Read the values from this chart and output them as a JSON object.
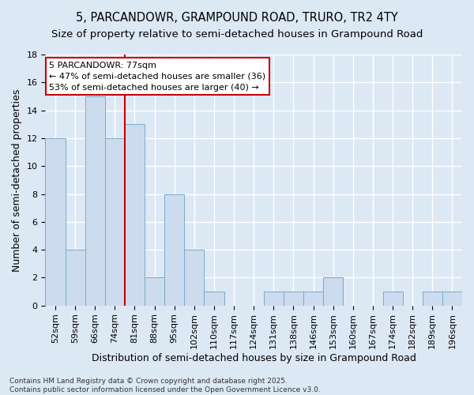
{
  "title": "5, PARCANDOWR, GRAMPOUND ROAD, TRURO, TR2 4TY",
  "subtitle": "Size of property relative to semi-detached houses in Grampound Road",
  "xlabel": "Distribution of semi-detached houses by size in Grampound Road",
  "ylabel": "Number of semi-detached properties",
  "categories": [
    "52sqm",
    "59sqm",
    "66sqm",
    "74sqm",
    "81sqm",
    "88sqm",
    "95sqm",
    "102sqm",
    "110sqm",
    "117sqm",
    "124sqm",
    "131sqm",
    "138sqm",
    "146sqm",
    "153sqm",
    "160sqm",
    "167sqm",
    "174sqm",
    "182sqm",
    "189sqm",
    "196sqm"
  ],
  "values": [
    12,
    4,
    15,
    12,
    13,
    2,
    8,
    4,
    1,
    0,
    0,
    1,
    1,
    1,
    2,
    0,
    0,
    1,
    0,
    1,
    1
  ],
  "bar_color": "#ccdcee",
  "bar_edge_color": "#7aaac8",
  "background_color": "#dde8f5",
  "grid_color": "#ffffff",
  "vline_x": 3.5,
  "vline_color": "#cc0000",
  "annotation_line1": "5 PARCANDOWR: 77sqm",
  "annotation_line2": "← 47% of semi-detached houses are smaller (36)",
  "annotation_line3": "53% of semi-detached houses are larger (40) →",
  "annotation_box_color": "white",
  "annotation_box_edge": "#cc0000",
  "ylim": [
    0,
    18
  ],
  "yticks": [
    0,
    2,
    4,
    6,
    8,
    10,
    12,
    14,
    16,
    18
  ],
  "title_fontsize": 10.5,
  "subtitle_fontsize": 9.5,
  "xlabel_fontsize": 9,
  "ylabel_fontsize": 9,
  "tick_fontsize": 8,
  "annotation_fontsize": 8,
  "footer_text": "Contains HM Land Registry data © Crown copyright and database right 2025.\nContains public sector information licensed under the Open Government Licence v3.0.",
  "footer_fontsize": 6.5
}
